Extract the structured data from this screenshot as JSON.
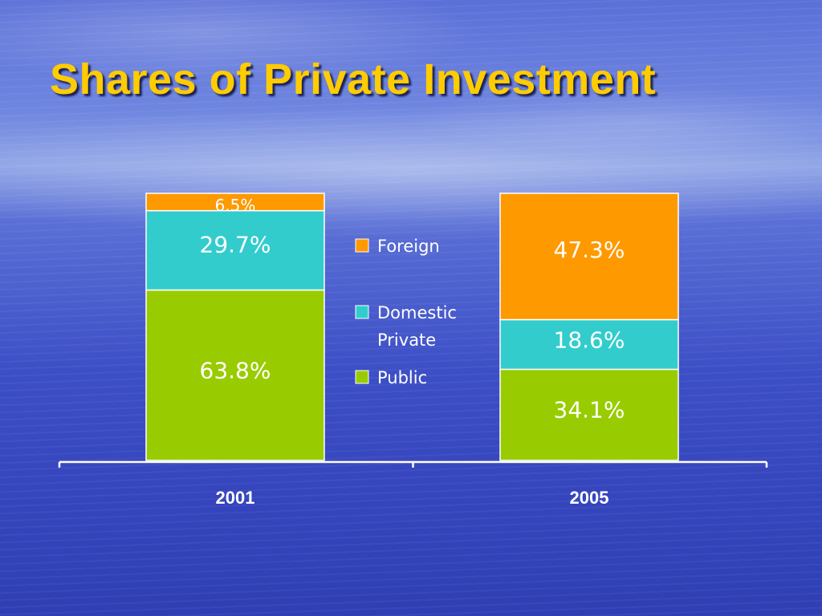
{
  "slide": {
    "title": "Shares of Private Investment"
  },
  "chart_data": {
    "type": "bar",
    "stacked": true,
    "categories": [
      "2001",
      "2005"
    ],
    "series": [
      {
        "name": "Public",
        "values": [
          63.8,
          34.1
        ],
        "labels": [
          "63.8%",
          "34.1%"
        ],
        "color": "#99cc00"
      },
      {
        "name": "Domestic Private",
        "values": [
          29.7,
          18.6
        ],
        "labels": [
          "29.7%",
          "18.6%"
        ],
        "color": "#33cccc"
      },
      {
        "name": "Foreign",
        "values": [
          6.5,
          47.3
        ],
        "labels": [
          "6.5%",
          "47.3%"
        ],
        "color": "#ff9900"
      }
    ],
    "legend": {
      "placement": "center",
      "entries": [
        {
          "lines": [
            "Foreign"
          ]
        },
        {
          "lines": [
            "Domestic",
            "Private"
          ]
        },
        {
          "lines": [
            "Public"
          ]
        }
      ]
    },
    "ylim": [
      0,
      100
    ],
    "grid": false
  }
}
